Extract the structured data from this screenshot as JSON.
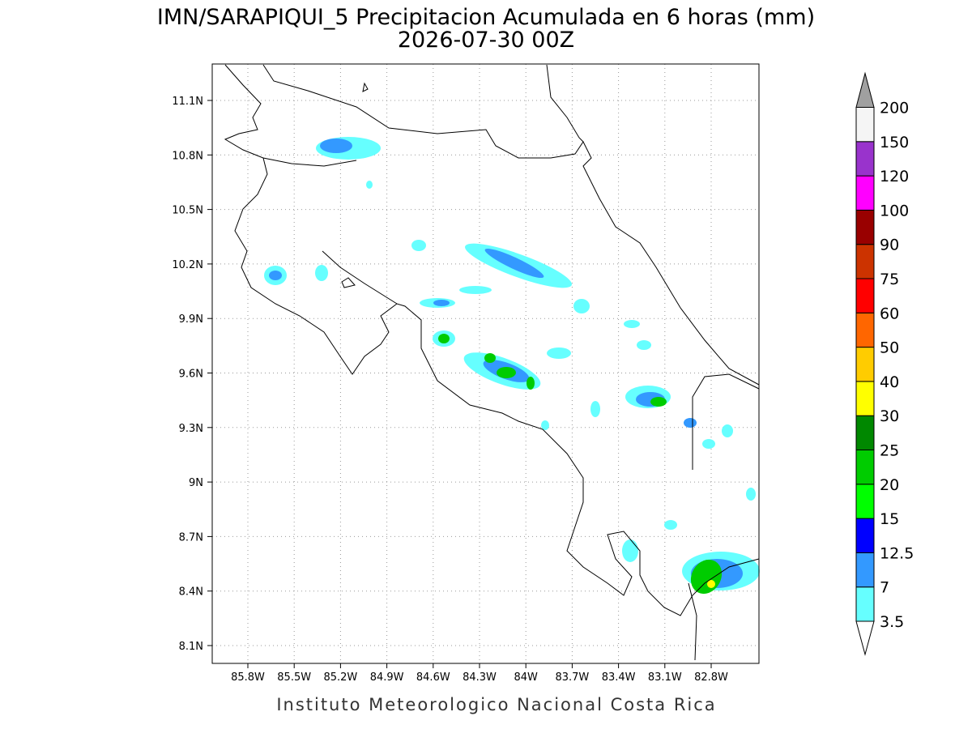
{
  "title": "IMN/SARAPIQUI_5 Precipitacion Acumulada en 6 horas (mm)",
  "subtitle": "2026-07-30 00Z",
  "x_ticks": [
    "85.8W",
    "85.5W",
    "85.2W",
    "84.9W",
    "84.6W",
    "84.3W",
    "84W",
    "83.7W",
    "83.4W",
    "83.1W",
    "82.8W"
  ],
  "y_ticks": [
    "11.1N",
    "10.8N",
    "10.5N",
    "10.2N",
    "9.9N",
    "9.6N",
    "9.3N",
    "9N",
    "8.7N",
    "8.4N",
    "8.1N"
  ],
  "colorbar": {
    "labels": [
      "3.5",
      "7",
      "12.5",
      "15",
      "20",
      "25",
      "30",
      "40",
      "50",
      "60",
      "75",
      "90",
      "100",
      "120",
      "150",
      "200"
    ],
    "colors": [
      "#66ffff",
      "#3399ff",
      "#0000ff",
      "#00ff00",
      "#00cc00",
      "#008800",
      "#ffff00",
      "#ffcc00",
      "#ff6600",
      "#ff0000",
      "#cc3300",
      "#990000",
      "#ff00ff",
      "#9933cc",
      "#f5f5f5"
    ],
    "under_color": "#ffffff",
    "over_color": "#a0a0a0"
  },
  "footer": "Instituto Meteorologico Nacional Costa Rica"
}
